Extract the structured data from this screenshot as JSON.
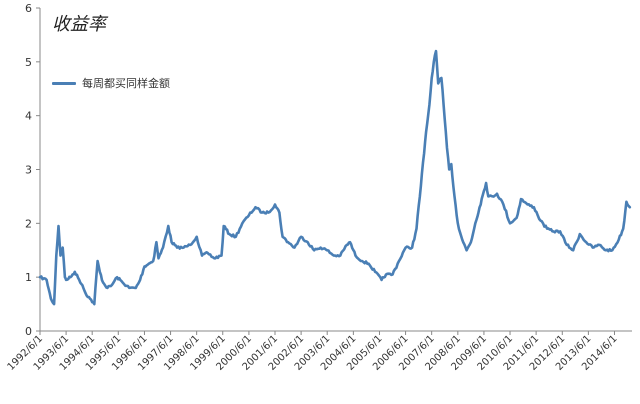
{
  "chart_data": {
    "type": "line",
    "title": "收益率",
    "xlabel": "",
    "ylabel": "",
    "ylim": [
      0,
      6
    ],
    "yticks": [
      0,
      1,
      2,
      3,
      4,
      5,
      6
    ],
    "grid": false,
    "legend_position": "top-left",
    "line_color": "#4a7fb5",
    "x_tick_labels": [
      "1992/6/1",
      "1993/6/1",
      "1994/6/1",
      "1995/6/1",
      "1996/6/1",
      "1997/6/1",
      "1998/6/1",
      "1999/6/1",
      "2000/6/1",
      "2001/6/1",
      "2002/6/1",
      "2003/6/1",
      "2004/6/1",
      "2005/6/1",
      "2006/6/1",
      "2007/6/1",
      "2008/6/1",
      "2009/6/1",
      "2010/6/1",
      "2011/6/1",
      "2012/6/1",
      "2013/6/1",
      "2014/6/1"
    ],
    "series": [
      {
        "name": "每周都买同样金额",
        "points": [
          [
            "1992/6/1",
            1.0
          ],
          [
            "1992/9/1",
            0.95
          ],
          [
            "1992/11/1",
            0.6
          ],
          [
            "1992/12/15",
            0.5
          ],
          [
            "1993/1/15",
            1.4
          ],
          [
            "1993/2/15",
            1.95
          ],
          [
            "1993/3/15",
            1.4
          ],
          [
            "1993/4/15",
            1.55
          ],
          [
            "1993/5/15",
            1.0
          ],
          [
            "1993/6/1",
            0.95
          ],
          [
            "1993/8/1",
            1.0
          ],
          [
            "1993/10/1",
            1.1
          ],
          [
            "1993/12/1",
            0.95
          ],
          [
            "1994/1/15",
            0.85
          ],
          [
            "1994/3/1",
            0.7
          ],
          [
            "1994/5/1",
            0.6
          ],
          [
            "1994/7/1",
            0.5
          ],
          [
            "1994/8/15",
            1.3
          ],
          [
            "1994/9/15",
            1.1
          ],
          [
            "1994/11/1",
            0.9
          ],
          [
            "1995/1/1",
            0.8
          ],
          [
            "1995/3/1",
            0.85
          ],
          [
            "1995/5/15",
            1.0
          ],
          [
            "1995/8/1",
            0.9
          ],
          [
            "1995/11/1",
            0.8
          ],
          [
            "1996/2/1",
            0.8
          ],
          [
            "1996/4/1",
            0.95
          ],
          [
            "1996/6/1",
            1.2
          ],
          [
            "1996/8/1",
            1.25
          ],
          [
            "1996/10/1",
            1.3
          ],
          [
            "1996/11/15",
            1.65
          ],
          [
            "1996/12/15",
            1.35
          ],
          [
            "1997/2/15",
            1.55
          ],
          [
            "1997/5/1",
            1.95
          ],
          [
            "1997/6/15",
            1.65
          ],
          [
            "1997/9/1",
            1.55
          ],
          [
            "1997/12/1",
            1.55
          ],
          [
            "1998/3/1",
            1.6
          ],
          [
            "1998/6/1",
            1.75
          ],
          [
            "1998/8/15",
            1.4
          ],
          [
            "1998/11/1",
            1.45
          ],
          [
            "1999/2/1",
            1.35
          ],
          [
            "1999/5/15",
            1.4
          ],
          [
            "1999/6/15",
            1.95
          ],
          [
            "1999/9/1",
            1.8
          ],
          [
            "1999/12/1",
            1.75
          ],
          [
            "2000/3/1",
            2.0
          ],
          [
            "2000/6/1",
            2.15
          ],
          [
            "2000/9/1",
            2.3
          ],
          [
            "2000/12/1",
            2.2
          ],
          [
            "2001/3/1",
            2.2
          ],
          [
            "2001/6/1",
            2.35
          ],
          [
            "2001/8/1",
            2.2
          ],
          [
            "2001/9/15",
            1.75
          ],
          [
            "2001/12/1",
            1.65
          ],
          [
            "2002/3/1",
            1.55
          ],
          [
            "2002/6/1",
            1.75
          ],
          [
            "2002/9/1",
            1.65
          ],
          [
            "2002/12/1",
            1.5
          ],
          [
            "2003/3/1",
            1.55
          ],
          [
            "2003/6/1",
            1.5
          ],
          [
            "2003/9/1",
            1.4
          ],
          [
            "2003/12/1",
            1.4
          ],
          [
            "2004/3/1",
            1.6
          ],
          [
            "2004/4/15",
            1.65
          ],
          [
            "2004/7/1",
            1.4
          ],
          [
            "2004/10/1",
            1.3
          ],
          [
            "2005/1/1",
            1.25
          ],
          [
            "2005/4/1",
            1.1
          ],
          [
            "2005/7/1",
            0.95
          ],
          [
            "2005/9/1",
            1.05
          ],
          [
            "2005/12/1",
            1.05
          ],
          [
            "2006/3/1",
            1.3
          ],
          [
            "2006/6/1",
            1.55
          ],
          [
            "2006/9/1",
            1.55
          ],
          [
            "2006/11/1",
            1.9
          ],
          [
            "2007/1/1",
            2.7
          ],
          [
            "2007/2/15",
            3.3
          ],
          [
            "2007/3/15",
            3.7
          ],
          [
            "2007/5/1",
            4.2
          ],
          [
            "2007/6/1",
            4.7
          ],
          [
            "2007/7/1",
            5.0
          ],
          [
            "2007/8/1",
            5.2
          ],
          [
            "2007/9/1",
            4.6
          ],
          [
            "2007/10/15",
            4.7
          ],
          [
            "2007/11/15",
            4.2
          ],
          [
            "2008/1/1",
            3.4
          ],
          [
            "2008/2/1",
            3.0
          ],
          [
            "2008/3/1",
            3.1
          ],
          [
            "2008/4/15",
            2.5
          ],
          [
            "2008/6/1",
            2.0
          ],
          [
            "2008/8/1",
            1.7
          ],
          [
            "2008/10/1",
            1.5
          ],
          [
            "2008/12/1",
            1.65
          ],
          [
            "2009/2/1",
            2.0
          ],
          [
            "2009/4/1",
            2.3
          ],
          [
            "2009/6/1",
            2.6
          ],
          [
            "2009/7/1",
            2.75
          ],
          [
            "2009/8/1",
            2.5
          ],
          [
            "2009/10/1",
            2.5
          ],
          [
            "2009/12/1",
            2.55
          ],
          [
            "2010/3/1",
            2.35
          ],
          [
            "2010/6/1",
            2.0
          ],
          [
            "2010/9/1",
            2.1
          ],
          [
            "2010/11/1",
            2.45
          ],
          [
            "2011/2/1",
            2.35
          ],
          [
            "2011/5/1",
            2.3
          ],
          [
            "2011/8/1",
            2.05
          ],
          [
            "2011/11/1",
            1.9
          ],
          [
            "2012/2/1",
            1.85
          ],
          [
            "2012/5/1",
            1.85
          ],
          [
            "2012/8/1",
            1.6
          ],
          [
            "2012/11/1",
            1.5
          ],
          [
            "2013/2/1",
            1.8
          ],
          [
            "2013/5/1",
            1.65
          ],
          [
            "2013/8/1",
            1.55
          ],
          [
            "2013/11/1",
            1.6
          ],
          [
            "2014/2/1",
            1.5
          ],
          [
            "2014/5/1",
            1.5
          ],
          [
            "2014/8/1",
            1.7
          ],
          [
            "2014/10/1",
            1.9
          ],
          [
            "2014/11/15",
            2.4
          ],
          [
            "2015/1/1",
            2.3
          ]
        ]
      }
    ]
  }
}
